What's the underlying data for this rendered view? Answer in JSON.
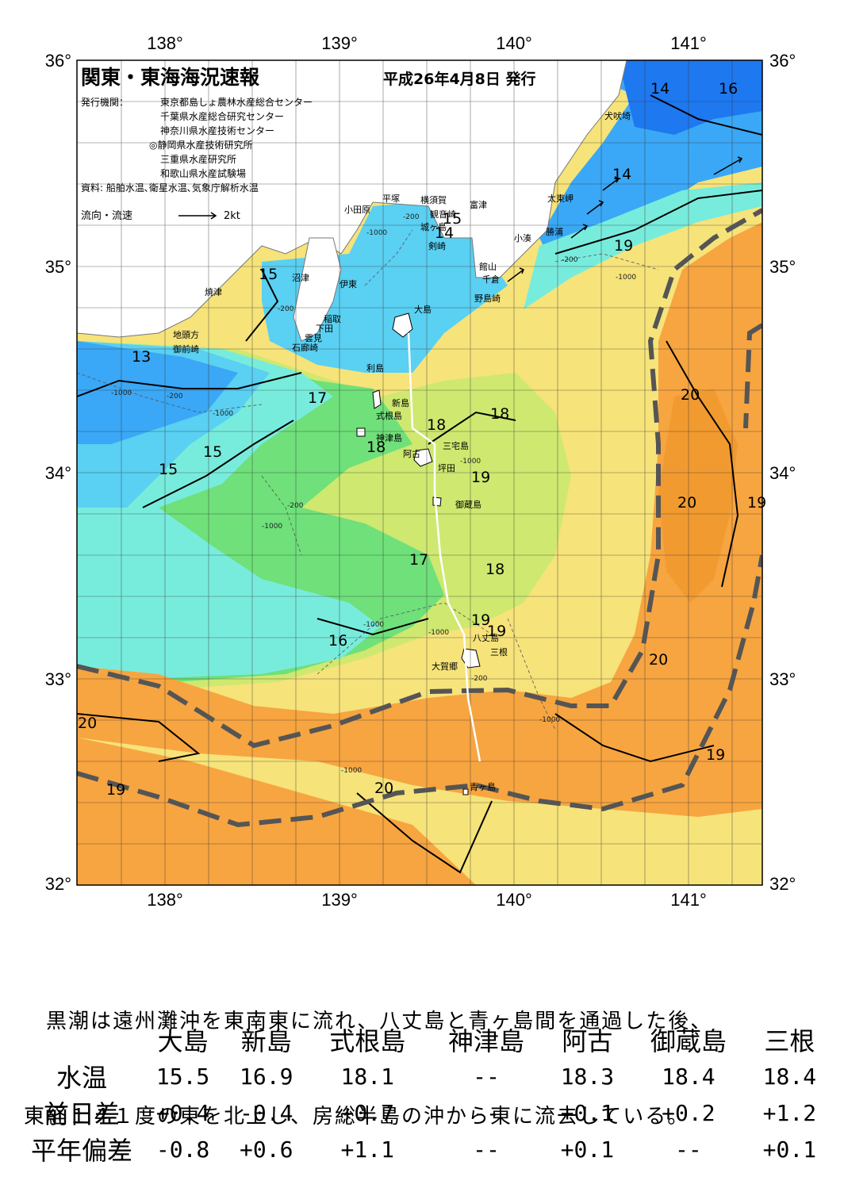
{
  "map": {
    "title": "関東・東海海況速報",
    "issue_date": "平成26年4月8日 発行",
    "issuers_label": "発行機関：",
    "issuers": [
      "東京都島しょ農林水産総合センター",
      "千葉県水産総合研究センター",
      "神奈川県水産技術センター",
      "◎静岡県水産技術研究所",
      "三重県水産研究所",
      "和歌山県水産試験場"
    ],
    "source": "資料: 船舶水温､衛星水温､気象庁解析水温",
    "current_legend": "流向・流速",
    "current_scale": "2kt",
    "lon_ticks": [
      "138°",
      "139°",
      "140°",
      "141°"
    ],
    "lat_ticks": [
      "36°",
      "35°",
      "34°",
      "33°",
      "32°"
    ],
    "colors": {
      "t13": "#1e78f0",
      "t14": "#3aa8f6",
      "t15": "#5ad0f2",
      "t16": "#78ecdc",
      "t17": "#6fe07a",
      "t18": "#cfe870",
      "t19": "#f6e37a",
      "t20": "#f7a540",
      "land": "#ffffff",
      "kuroshio": "#555555"
    },
    "places": [
      {
        "name": "犬吠埼"
      },
      {
        "name": "太東岬"
      },
      {
        "name": "勝浦"
      },
      {
        "name": "小湊"
      },
      {
        "name": "富津"
      },
      {
        "name": "観音崎"
      },
      {
        "name": "横須賀"
      },
      {
        "name": "平塚"
      },
      {
        "name": "小田原"
      },
      {
        "name": "城ヶ島"
      },
      {
        "name": "剣崎"
      },
      {
        "name": "館山"
      },
      {
        "name": "千倉"
      },
      {
        "name": "野島崎"
      },
      {
        "name": "沼津"
      },
      {
        "name": "伊東"
      },
      {
        "name": "焼津"
      },
      {
        "name": "稲取"
      },
      {
        "name": "下田"
      },
      {
        "name": "雲見"
      },
      {
        "name": "石廊崎"
      },
      {
        "name": "地頭方"
      },
      {
        "name": "御前崎"
      },
      {
        "name": "大島"
      },
      {
        "name": "利島"
      },
      {
        "name": "新島"
      },
      {
        "name": "式根島"
      },
      {
        "name": "神津島"
      },
      {
        "name": "三宅島"
      },
      {
        "name": "阿古"
      },
      {
        "name": "坪田"
      },
      {
        "name": "御蔵島"
      },
      {
        "name": "八丈島"
      },
      {
        "name": "三根"
      },
      {
        "name": "大賀郷"
      },
      {
        "name": "青ヶ島"
      }
    ],
    "isotherm_labels": [
      {
        "text": "13"
      },
      {
        "text": "14"
      },
      {
        "text": "14"
      },
      {
        "text": "14"
      },
      {
        "text": "15"
      },
      {
        "text": "15"
      },
      {
        "text": "15"
      },
      {
        "text": "15"
      },
      {
        "text": "16"
      },
      {
        "text": "16"
      },
      {
        "text": "17"
      },
      {
        "text": "17"
      },
      {
        "text": "18"
      },
      {
        "text": "18"
      },
      {
        "text": "18"
      },
      {
        "text": "18"
      },
      {
        "text": "19"
      },
      {
        "text": "19"
      },
      {
        "text": "19"
      },
      {
        "text": "19"
      },
      {
        "text": "19"
      },
      {
        "text": "19"
      },
      {
        "text": "19"
      },
      {
        "text": "20"
      },
      {
        "text": "20"
      },
      {
        "text": "20"
      },
      {
        "text": "20"
      },
      {
        "text": "20"
      }
    ],
    "depth_labels": [
      {
        "text": "-200"
      },
      {
        "text": "-1000"
      },
      {
        "text": "-200"
      },
      {
        "text": "-1000"
      },
      {
        "text": "-200"
      },
      {
        "text": "-1000"
      },
      {
        "text": "-1000"
      },
      {
        "text": "-200"
      },
      {
        "text": "-1000"
      },
      {
        "text": "-1000"
      },
      {
        "text": "-1000"
      },
      {
        "text": "-1000"
      },
      {
        "text": "-1000"
      },
      {
        "text": "-200"
      },
      {
        "text": "-200"
      },
      {
        "text": "-1000"
      }
    ]
  },
  "summary": {
    "line1": "　黒潮は遠州灘沖を東南東に流れ、八丈島と青ヶ島間を通過した後、",
    "line2": "東経１４１度の東を北上し、房総半島の沖から東に流去している。"
  },
  "table": {
    "stations": [
      "大島",
      "新島",
      "式根島",
      "神津島",
      "阿古",
      "御蔵島",
      "三根"
    ],
    "rows": [
      {
        "label": "水温",
        "values": [
          "15.5",
          "16.9",
          "18.1",
          "--",
          "18.3",
          "18.4",
          "18.4"
        ]
      },
      {
        "label": "前日差",
        "values": [
          "+0.4",
          "-0.4",
          "+0.7",
          "--",
          "+0.1",
          "+0.2",
          "+1.2"
        ]
      },
      {
        "label": "平年偏差",
        "values": [
          "-0.8",
          "+0.6",
          "+1.1",
          "--",
          "+0.1",
          "--",
          "+0.1"
        ]
      }
    ]
  }
}
